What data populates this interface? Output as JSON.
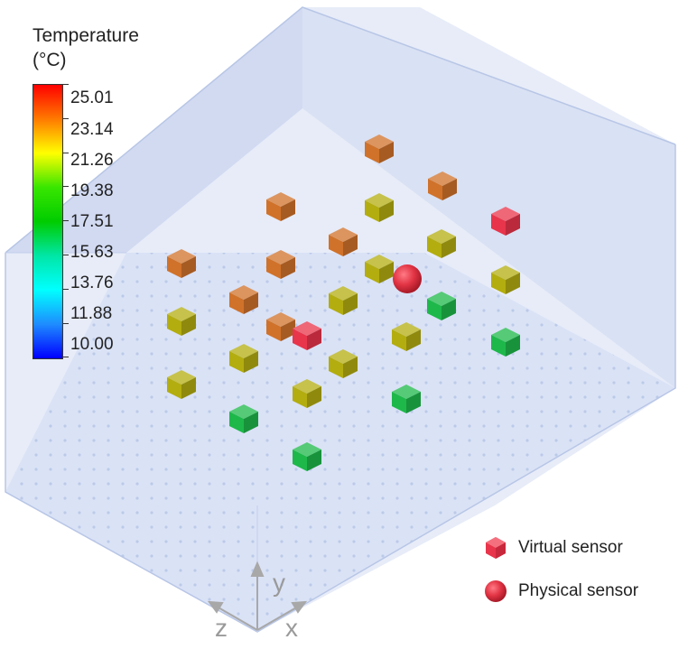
{
  "colorbar": {
    "title_line1": "Temperature",
    "title_line2": "(°C)",
    "ticks": [
      "25.01",
      "23.14",
      "21.26",
      "19.38",
      "17.51",
      "15.63",
      "13.76",
      "11.88",
      "10.00"
    ]
  },
  "legend": {
    "virtual_label": "Virtual sensor",
    "physical_label": "Physical sensor"
  },
  "axes": {
    "y": "y",
    "z": "z",
    "x": "x"
  },
  "colors": {
    "red": "#e8354b",
    "orange": "#d0722a",
    "olive": "#b3ad10",
    "green": "#1eb84a",
    "room": "#c5d1ee",
    "floor": "#d6e0f5"
  }
}
